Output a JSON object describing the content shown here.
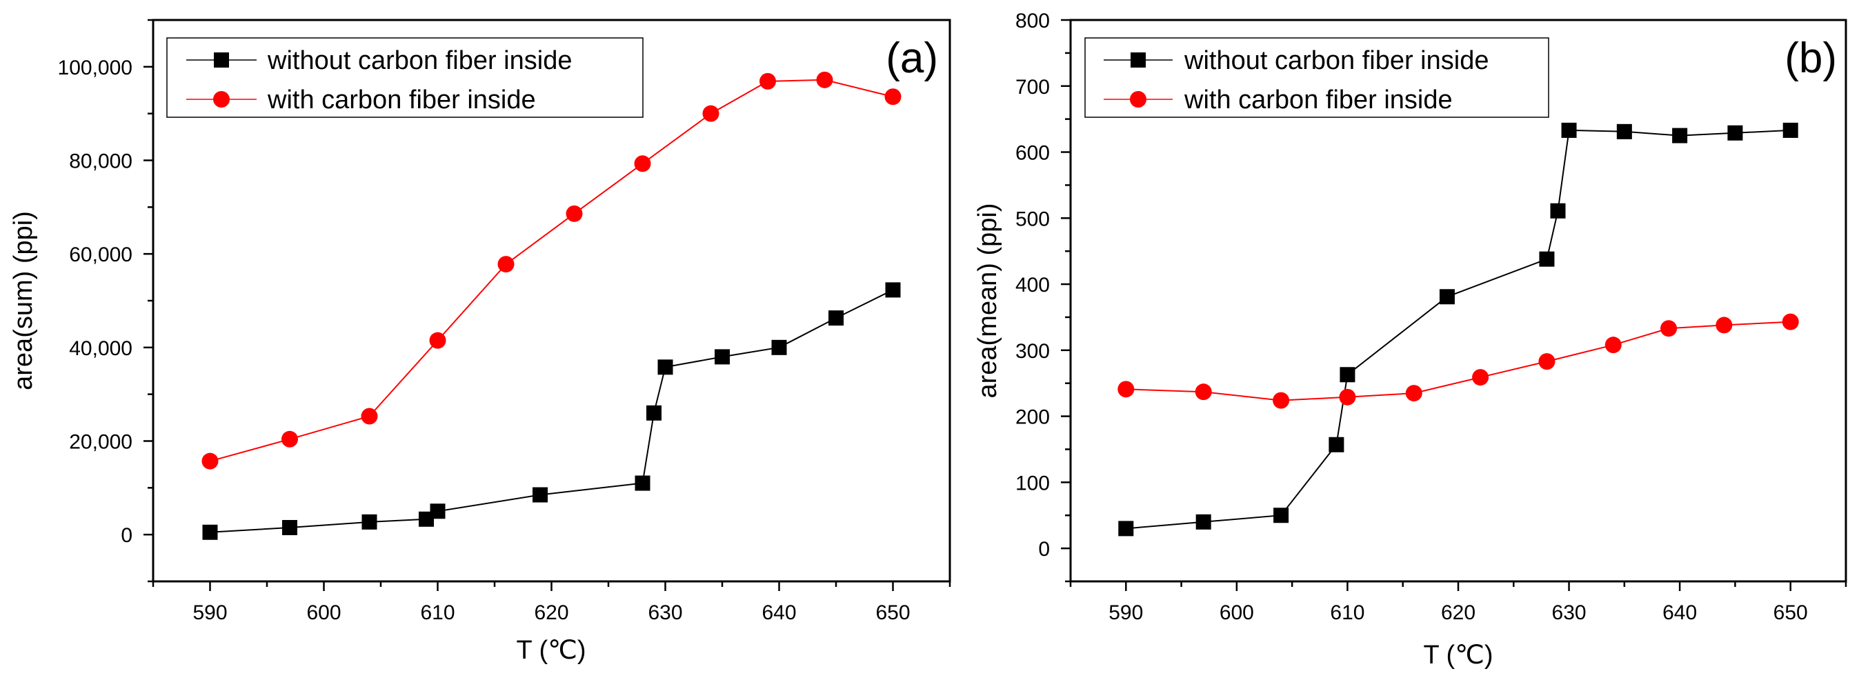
{
  "chart_data": [
    {
      "type": "line",
      "panel_label": "(a)",
      "xlabel": "T (℃)",
      "ylabel": "area(sum) (ppi)",
      "xlim": [
        585,
        655
      ],
      "ylim": [
        -10000,
        110000
      ],
      "xticks": [
        590,
        600,
        610,
        620,
        630,
        640,
        650
      ],
      "xtick_labels": [
        "590",
        "600",
        "610",
        "620",
        "630",
        "640",
        "650"
      ],
      "yticks": [
        0,
        20000,
        40000,
        60000,
        80000,
        100000
      ],
      "ytick_labels": [
        "0",
        "20,000",
        "40,000",
        "60,000",
        "80,000",
        "100,000"
      ],
      "legend_position": "top-left",
      "series": [
        {
          "name": "without carbon fiber inside",
          "color": "#000000",
          "marker": "square",
          "x": [
            590,
            597,
            604,
            609,
            610,
            619,
            628,
            629,
            630,
            635,
            640,
            645,
            650
          ],
          "y": [
            500,
            1500,
            2700,
            3300,
            5000,
            8500,
            11000,
            26000,
            35800,
            38000,
            40000,
            46300,
            52300
          ]
        },
        {
          "name": "with carbon fiber inside",
          "color": "#ff0000",
          "marker": "circle",
          "x": [
            590,
            597,
            604,
            610,
            616,
            622,
            628,
            634,
            639,
            644,
            650
          ],
          "y": [
            15700,
            20400,
            25300,
            41500,
            57800,
            68600,
            79300,
            90000,
            96900,
            97200,
            93600
          ]
        }
      ]
    },
    {
      "type": "line",
      "panel_label": "(b)",
      "xlabel": "T (℃)",
      "ylabel": "area(mean) (ppi)",
      "xlim": [
        585,
        655
      ],
      "ylim": [
        -50,
        800
      ],
      "xticks": [
        590,
        600,
        610,
        620,
        630,
        640,
        650
      ],
      "xtick_labels": [
        "590",
        "600",
        "610",
        "620",
        "630",
        "640",
        "650"
      ],
      "yticks": [
        0,
        100,
        200,
        300,
        400,
        500,
        600,
        700,
        800
      ],
      "ytick_labels": [
        "0",
        "100",
        "200",
        "300",
        "400",
        "500",
        "600",
        "700",
        "800"
      ],
      "legend_position": "top-left",
      "series": [
        {
          "name": "without carbon fiber inside",
          "color": "#000000",
          "marker": "square",
          "x": [
            590,
            597,
            604,
            609,
            610,
            619,
            628,
            629,
            630,
            635,
            640,
            645,
            650
          ],
          "y": [
            30,
            40,
            50,
            157,
            263,
            381,
            438,
            511,
            633,
            631,
            625,
            629,
            633
          ]
        },
        {
          "name": "with carbon fiber inside",
          "color": "#ff0000",
          "marker": "circle",
          "x": [
            590,
            597,
            604,
            610,
            616,
            622,
            628,
            634,
            639,
            644,
            650
          ],
          "y": [
            241,
            237,
            224,
            229,
            235,
            259,
            283,
            308,
            333,
            338,
            343
          ]
        }
      ]
    }
  ]
}
